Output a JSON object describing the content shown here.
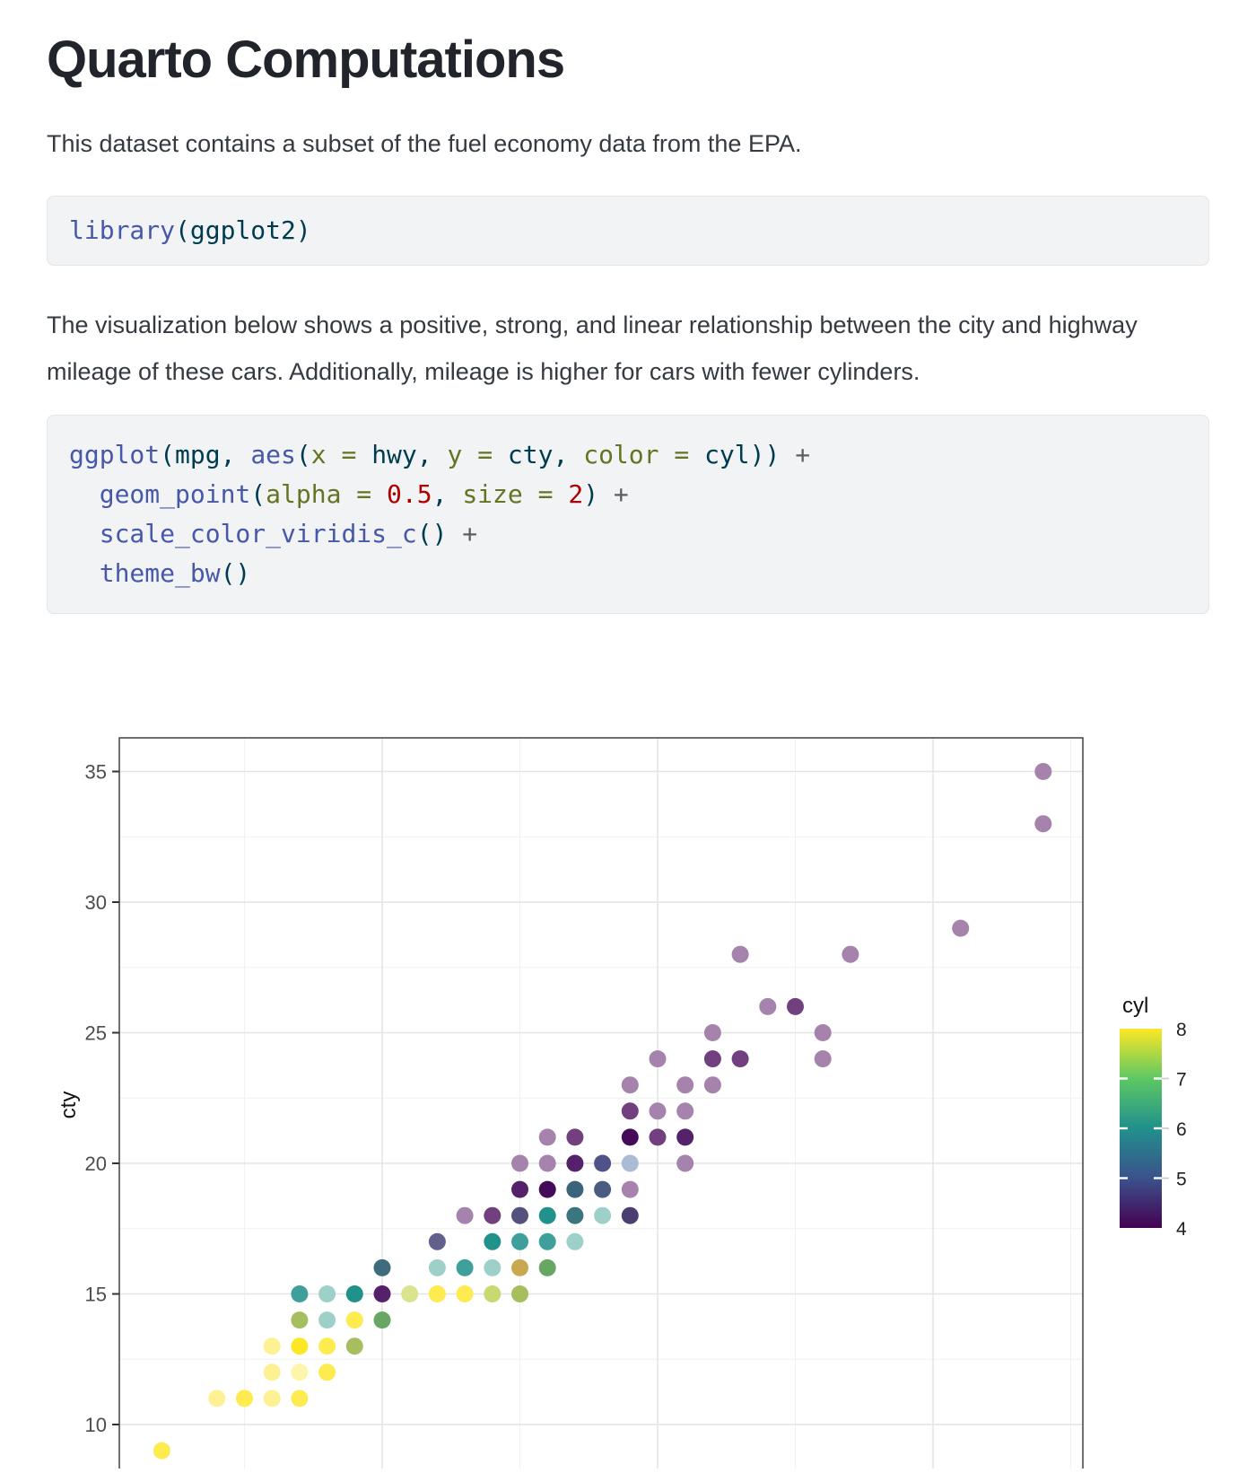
{
  "page": {
    "title": "Quarto Computations",
    "paragraph1": "This dataset contains a subset of the fuel economy data from the EPA.",
    "paragraph2": "The visualization below shows a positive, strong, and linear relationship between the city and highway mileage of these cars. Additionally, mileage is higher for cars with fewer cylinders."
  },
  "colors": {
    "heading": "#21252b",
    "body_text": "#343a40",
    "code_background": "#f1f3f5",
    "code_border": "#e3e6e8",
    "syntax": {
      "function": "#4758AB",
      "plain": "#003B4F",
      "argument": "#657422",
      "number": "#AD0000",
      "operator": "#5E5E5E"
    },
    "panel_border": "#4d4d4d",
    "grid_major": "#e4e4e4",
    "grid_minor": "#f1f1f1",
    "tick_label": "#4d4d4d",
    "axis_title": "#111111"
  },
  "code_blocks": [
    {
      "name": "code-block-library",
      "lines": [
        [
          [
            "fu",
            "library"
          ],
          [
            "pl",
            "("
          ],
          [
            "pl",
            "ggplot2"
          ],
          [
            "pl",
            ")"
          ]
        ]
      ]
    },
    {
      "name": "code-block-ggplot",
      "lines": [
        [
          [
            "fu",
            "ggplot"
          ],
          [
            "pl",
            "(mpg, "
          ],
          [
            "fu",
            "aes"
          ],
          [
            "pl",
            "("
          ],
          [
            "at",
            "x = "
          ],
          [
            "pl",
            "hwy, "
          ],
          [
            "at",
            "y = "
          ],
          [
            "pl",
            "cty, "
          ],
          [
            "at",
            "color = "
          ],
          [
            "pl",
            "cyl))"
          ],
          [
            "ot",
            " +"
          ]
        ],
        [
          [
            "pl",
            "  "
          ],
          [
            "fu",
            "geom_point"
          ],
          [
            "pl",
            "("
          ],
          [
            "at",
            "alpha = "
          ],
          [
            "dv",
            "0.5"
          ],
          [
            "pl",
            ", "
          ],
          [
            "at",
            "size = "
          ],
          [
            "dv",
            "2"
          ],
          [
            "pl",
            ")"
          ],
          [
            "ot",
            " +"
          ]
        ],
        [
          [
            "pl",
            "  "
          ],
          [
            "fu",
            "scale_color_viridis_c"
          ],
          [
            "pl",
            "()"
          ],
          [
            "ot",
            " +"
          ]
        ],
        [
          [
            "pl",
            "  "
          ],
          [
            "fu",
            "theme_bw"
          ],
          [
            "pl",
            "()"
          ]
        ]
      ]
    }
  ],
  "chart_data": {
    "type": "scatter",
    "x_variable": "hwy",
    "y_variable": "cty",
    "color_variable": "cyl",
    "ylabel": "cty",
    "point_alpha": 0.5,
    "point_size": 2,
    "x_range": [
      10.45,
      45.45
    ],
    "y_range": [
      7.7,
      36.3
    ],
    "x_gridlines_major": [
      20,
      30,
      40
    ],
    "x_gridlines_minor": [
      15,
      25,
      35,
      45
    ],
    "y_ticks": [
      35,
      30,
      25,
      20,
      15,
      10
    ],
    "y_gridlines_minor": [
      32.5,
      27.5,
      22.5,
      17.5,
      12.5
    ],
    "grid": true,
    "legend": {
      "title": "cyl",
      "position": "right",
      "labels": [
        8,
        7,
        6,
        5,
        4
      ],
      "bar_ticks": [
        7,
        6,
        5
      ],
      "range": [
        4,
        8
      ],
      "viridis_stops": [
        "#FDE725",
        "#5DC863",
        "#21908C",
        "#3B528B",
        "#440154"
      ]
    },
    "palette": {
      "P1": "#A583AD",
      "P2": "#72407F",
      "P3": "#54216B",
      "P4": "#440C58",
      "B1": "#A9BCD4",
      "B2": "#4F5288",
      "SB": "#4A5C82",
      "DV": "#4B3E72",
      "V": "#62608C",
      "V2": "#55517F",
      "TB": "#3E6B7E",
      "TB2": "#39647B",
      "TSL": "#3A7580",
      "T1": "#9DD0C9",
      "T2": "#3FA09B",
      "T3": "#21918B",
      "Y0": "#FEF5AC",
      "Y1": "#FDF194",
      "Y2": "#FDEB4F",
      "Y3": "#FDE725",
      "YG": "#C9D871",
      "PYG": "#DAE38E",
      "OL": "#A6BE5D",
      "GR": "#68A663",
      "MU": "#C9A94F"
    },
    "points": [
      [
        12,
        9,
        "Y2"
      ],
      [
        14,
        11,
        "Y1"
      ],
      [
        15,
        11,
        "Y2"
      ],
      [
        16,
        11,
        "Y1"
      ],
      [
        17,
        11,
        "Y2"
      ],
      [
        16,
        12,
        "Y1"
      ],
      [
        17,
        12,
        "Y0"
      ],
      [
        18,
        12,
        "Y2"
      ],
      [
        16,
        13,
        "Y1"
      ],
      [
        17,
        13,
        "Y3"
      ],
      [
        18,
        13,
        "Y2"
      ],
      [
        19,
        13,
        "OL"
      ],
      [
        17,
        14,
        "OL"
      ],
      [
        18,
        14,
        "T1"
      ],
      [
        19,
        14,
        "Y2"
      ],
      [
        20,
        14,
        "GR"
      ],
      [
        17,
        15,
        "T2"
      ],
      [
        18,
        15,
        "T1"
      ],
      [
        19,
        15,
        "T3"
      ],
      [
        20,
        15,
        "P3"
      ],
      [
        21,
        15,
        "PYG"
      ],
      [
        22,
        15,
        "Y2"
      ],
      [
        23,
        15,
        "Y2"
      ],
      [
        24,
        15,
        "YG"
      ],
      [
        25,
        15,
        "OL"
      ],
      [
        20,
        16,
        "TB"
      ],
      [
        22,
        16,
        "T1"
      ],
      [
        23,
        16,
        "T2"
      ],
      [
        24,
        16,
        "T1"
      ],
      [
        25,
        16,
        "MU"
      ],
      [
        26,
        16,
        "GR"
      ],
      [
        22,
        17,
        "V"
      ],
      [
        24,
        17,
        "T3"
      ],
      [
        25,
        17,
        "T2"
      ],
      [
        26,
        17,
        "T2"
      ],
      [
        27,
        17,
        "T1"
      ],
      [
        23,
        18,
        "P1"
      ],
      [
        24,
        18,
        "P2"
      ],
      [
        25,
        18,
        "V2"
      ],
      [
        26,
        18,
        "T3"
      ],
      [
        27,
        18,
        "TSL"
      ],
      [
        28,
        18,
        "T1"
      ],
      [
        29,
        18,
        "DV"
      ],
      [
        25,
        19,
        "P3"
      ],
      [
        26,
        19,
        "P4"
      ],
      [
        27,
        19,
        "TB2"
      ],
      [
        28,
        19,
        "SB"
      ],
      [
        29,
        19,
        "P1"
      ],
      [
        25,
        20,
        "P1"
      ],
      [
        26,
        20,
        "P1"
      ],
      [
        27,
        20,
        "P3"
      ],
      [
        28,
        20,
        "B2"
      ],
      [
        29,
        20,
        "B1"
      ],
      [
        31,
        20,
        "P1"
      ],
      [
        26,
        21,
        "P1"
      ],
      [
        27,
        21,
        "P2"
      ],
      [
        29,
        21,
        "P4"
      ],
      [
        30,
        21,
        "P2"
      ],
      [
        31,
        21,
        "P3"
      ],
      [
        29,
        22,
        "P2"
      ],
      [
        30,
        22,
        "P1"
      ],
      [
        31,
        22,
        "P1"
      ],
      [
        29,
        23,
        "P1"
      ],
      [
        31,
        23,
        "P1"
      ],
      [
        32,
        23,
        "P1"
      ],
      [
        30,
        24,
        "P1"
      ],
      [
        32,
        24,
        "P2"
      ],
      [
        33,
        24,
        "P2"
      ],
      [
        36,
        24,
        "P1"
      ],
      [
        32,
        25,
        "P1"
      ],
      [
        36,
        25,
        "P1"
      ],
      [
        34,
        26,
        "P1"
      ],
      [
        35,
        26,
        "P2"
      ],
      [
        33,
        28,
        "P1"
      ],
      [
        37,
        28,
        "P1"
      ],
      [
        41,
        29,
        "P1"
      ],
      [
        44,
        33,
        "P1"
      ],
      [
        44,
        35,
        "P1"
      ]
    ]
  }
}
